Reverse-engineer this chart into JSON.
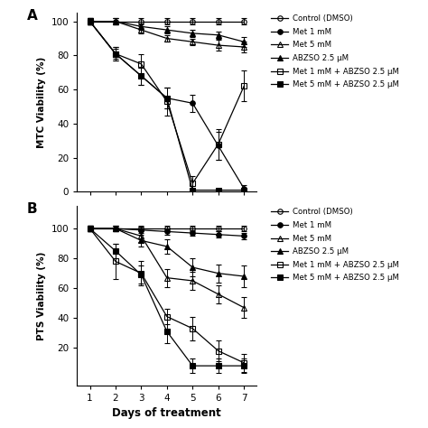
{
  "panel_A": {
    "ylabel": "MTC Viability (%)",
    "ylim": [
      0,
      105
    ],
    "yticks": [
      0,
      20,
      40,
      60,
      80,
      100
    ],
    "xlim": [
      0.5,
      7.5
    ],
    "xticks": [
      1,
      2,
      3,
      4,
      5,
      6,
      7
    ],
    "xlabel": "Days of treatment",
    "series_order": [
      "Control (DMSO)",
      "Met 1 mM",
      "Met 5 mM",
      "ABZSO 2.5 uM",
      "Met 1 mM + ABZSO 2.5 uM",
      "Met 5 mM + ABZSO 2.5 uM"
    ],
    "y_data": {
      "Control (DMSO)": [
        100,
        100,
        100,
        100,
        100,
        100,
        100
      ],
      "Met 1 mM": [
        100,
        81,
        68,
        55,
        52,
        27,
        2
      ],
      "Met 5 mM": [
        100,
        100,
        95,
        90,
        88,
        86,
        85
      ],
      "ABZSO 2.5 uM": [
        100,
        100,
        97,
        95,
        93,
        92,
        88
      ],
      "Met 1 mM + ABZSO 2.5 uM": [
        100,
        81,
        75,
        53,
        5,
        28,
        62
      ],
      "Met 5 mM + ABZSO 2.5 uM": [
        100,
        81,
        68,
        55,
        1,
        1,
        1
      ]
    },
    "yerr_data": {
      "Control (DMSO)": [
        2,
        2,
        2,
        2,
        2,
        2,
        2
      ],
      "Met 1 mM": [
        2,
        4,
        5,
        6,
        5,
        8,
        2
      ],
      "Met 5 mM": [
        2,
        2,
        2,
        2,
        2,
        3,
        3
      ],
      "ABZSO 2.5 uM": [
        2,
        2,
        2,
        2,
        2,
        2,
        3
      ],
      "Met 1 mM + ABZSO 2.5 uM": [
        2,
        3,
        6,
        8,
        4,
        9,
        9
      ],
      "Met 5 mM + ABZSO 2.5 uM": [
        2,
        4,
        5,
        6,
        1,
        1,
        1
      ]
    }
  },
  "panel_B": {
    "ylabel": "PTS Viability (%)",
    "ylim": [
      -5,
      115
    ],
    "yticks": [
      20,
      40,
      60,
      80,
      100
    ],
    "xlim": [
      0.5,
      7.5
    ],
    "xticks": [
      1,
      2,
      3,
      4,
      5,
      6,
      7
    ],
    "series_order": [
      "Control (DMSO)",
      "Met 1 mM",
      "Met 5 mM",
      "ABZSO 2.5 uM",
      "Met 1 mM + ABZSO 2.5 uM",
      "Met 5 mM + ABZSO 2.5 uM"
    ],
    "y_data": {
      "Control (DMSO)": [
        100,
        100,
        100,
        100,
        100,
        100,
        100
      ],
      "Met 1 mM": [
        100,
        100,
        99,
        98,
        97,
        96,
        95
      ],
      "Met 5 mM": [
        100,
        100,
        95,
        67,
        65,
        56,
        47
      ],
      "ABZSO 2.5 uM": [
        100,
        100,
        92,
        88,
        74,
        70,
        68
      ],
      "Met 1 mM + ABZSO 2.5 uM": [
        100,
        78,
        70,
        41,
        33,
        18,
        10
      ],
      "Met 5 mM + ABZSO 2.5 uM": [
        100,
        85,
        69,
        31,
        8,
        8,
        8
      ]
    },
    "yerr_data": {
      "Control (DMSO)": [
        2,
        2,
        2,
        2,
        2,
        2,
        2
      ],
      "Met 1 mM": [
        2,
        2,
        2,
        2,
        2,
        2,
        2
      ],
      "Met 5 mM": [
        2,
        2,
        4,
        6,
        6,
        6,
        7
      ],
      "ABZSO 2.5 uM": [
        2,
        2,
        4,
        5,
        6,
        6,
        7
      ],
      "Met 1 mM + ABZSO 2.5 uM": [
        2,
        12,
        8,
        5,
        8,
        7,
        6
      ],
      "Met 5 mM + ABZSO 2.5 uM": [
        2,
        5,
        6,
        8,
        5,
        5,
        5
      ]
    }
  },
  "x_days": [
    1,
    2,
    3,
    4,
    5,
    6,
    7
  ],
  "legend_labels": [
    "Control (DMSO)",
    "Met 1 mM",
    "Met 5 mM",
    "ABZSO 2.5 μM",
    "Met 1 mM + ABZSO 2.5 μM",
    "Met 5 mM + ABZSO 2.5 μM"
  ],
  "series_keys": [
    "Control (DMSO)",
    "Met 1 mM",
    "Met 5 mM",
    "ABZSO 2.5 uM",
    "Met 1 mM + ABZSO 2.5 uM",
    "Met 5 mM + ABZSO 2.5 uM"
  ],
  "markers": [
    "o",
    "o",
    "^",
    "^",
    "s",
    "s"
  ],
  "fillstyles": [
    "none",
    "full",
    "none",
    "full",
    "none",
    "full"
  ],
  "panel_labels": [
    "A",
    "B"
  ],
  "background_color": "#ffffff"
}
